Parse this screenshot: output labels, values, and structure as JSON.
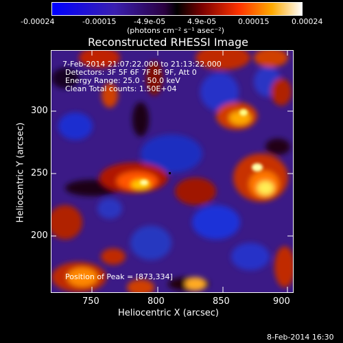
{
  "colorbar": {
    "tick_labels": [
      "-0.00024",
      "-0.00015",
      "-4.9e-05",
      "4.9e-05",
      "0.00015",
      "0.00024"
    ],
    "units_label": "(photons cm⁻² s⁻¹ asec⁻²)"
  },
  "title": "Reconstructed RHESSI Image",
  "info": {
    "line1": "7-Feb-2014 21:07:22.000 to 21:13:22.000",
    "line2": "Detectors: 3F 5F 6F 7F 8F 9F, Att 0",
    "line3": "Energy Range: 25.0 - 50.0 keV",
    "line4": "Clean     Total counts: 1.50E+04"
  },
  "peak_text": "Position of Peak = [873,334]",
  "x_axis": {
    "label": "Heliocentric X (arcsec)",
    "ticks": [
      "750",
      "800",
      "850",
      "900"
    ]
  },
  "y_axis": {
    "label": "Heliocentric Y (arcsec)",
    "ticks": [
      "300",
      "250",
      "200"
    ]
  },
  "footer_date": "8-Feb-2014 16:30",
  "colors": {
    "background": "#000000",
    "axes": "#ffffff"
  }
}
